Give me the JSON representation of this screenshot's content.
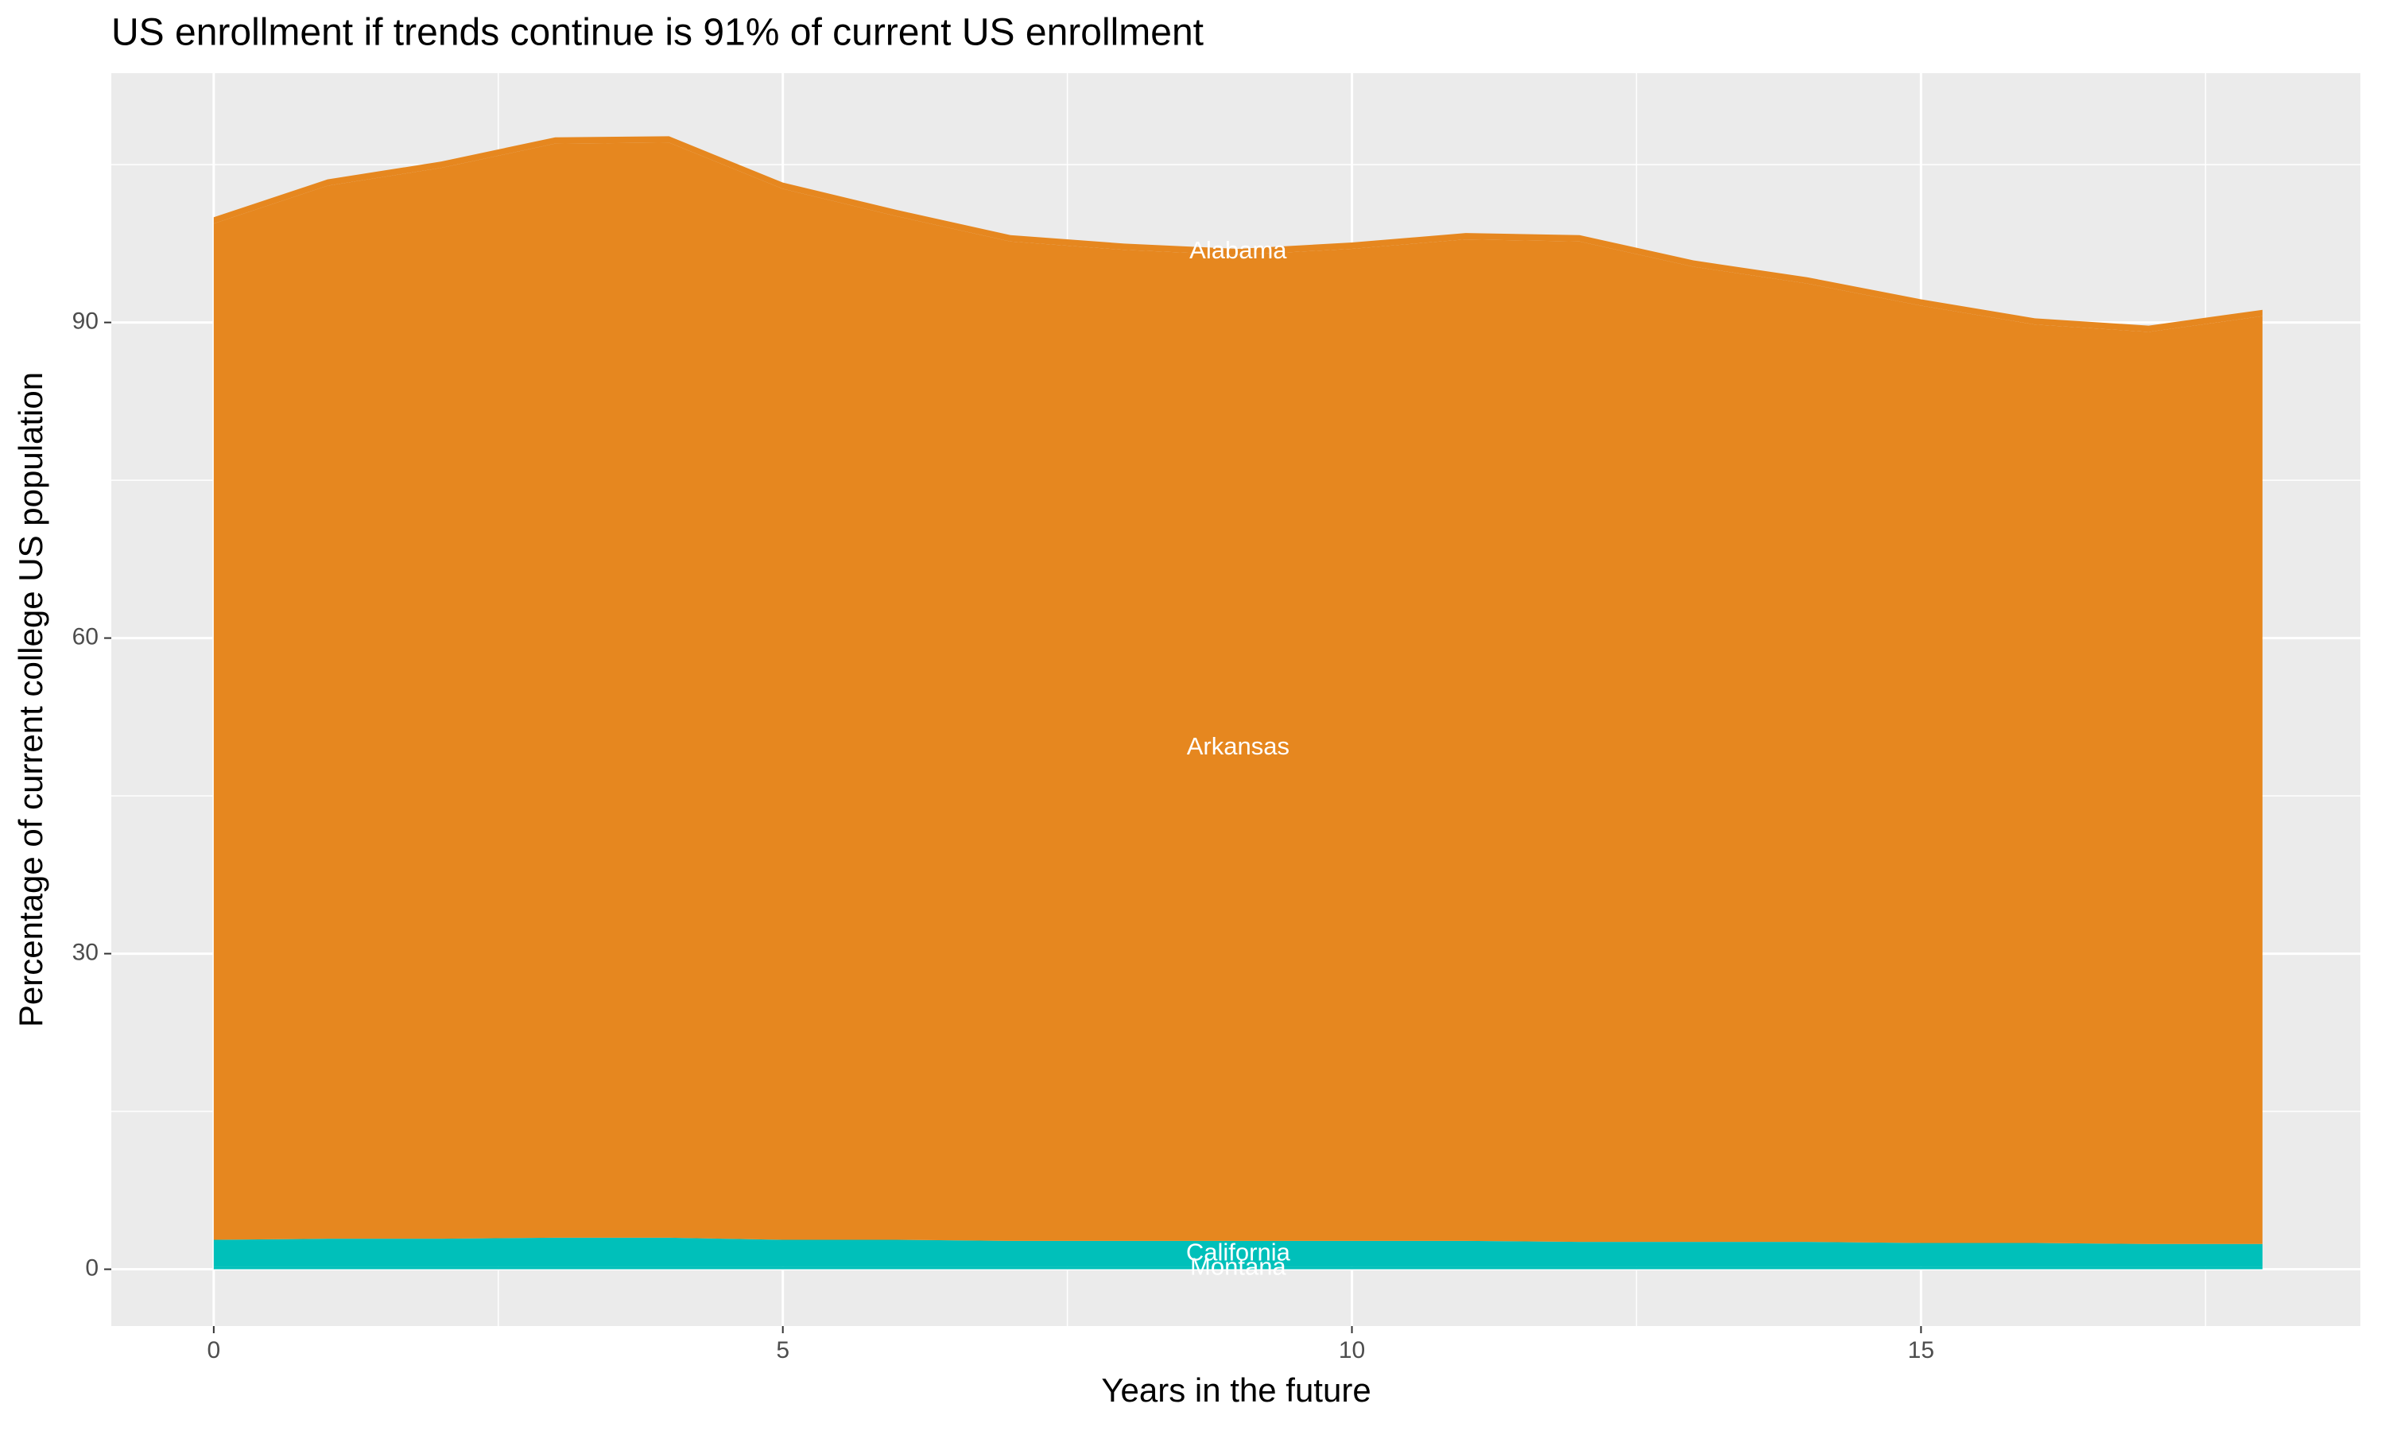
{
  "chart_data": {
    "type": "stacked_area",
    "title": "US enrollment if trends continue is 91% of current US enrollment",
    "x_label": "Years in the future",
    "y_label": "Percentage of current college US population",
    "x": [
      0,
      1,
      2,
      3,
      4,
      5,
      6,
      7,
      8,
      9,
      10,
      11,
      12,
      13,
      14,
      15,
      16,
      17,
      18
    ],
    "series": [
      {
        "name": "Montana",
        "color": "#00C0BA",
        "values": [
          0.2,
          0.2,
          0.2,
          0.2,
          0.2,
          0.2,
          0.2,
          0.2,
          0.2,
          0.2,
          0.2,
          0.2,
          0.2,
          0.2,
          0.2,
          0.2,
          0.2,
          0.2,
          0.2
        ]
      },
      {
        "name": "California",
        "color": "#00C0BA",
        "values": [
          2.6,
          2.7,
          2.7,
          2.8,
          2.8,
          2.6,
          2.6,
          2.5,
          2.5,
          2.5,
          2.5,
          2.5,
          2.4,
          2.4,
          2.4,
          2.3,
          2.3,
          2.2,
          2.2
        ]
      },
      {
        "name": "Arkansas",
        "color": "#E6871F",
        "values": [
          96.6,
          100.1,
          101.8,
          104.0,
          104.1,
          99.9,
          97.3,
          95.0,
          94.2,
          93.7,
          94.3,
          95.2,
          95.1,
          92.7,
          91.1,
          89.1,
          87.3,
          86.7,
          88.2
        ]
      },
      {
        "name": "Alabama",
        "color": "#E6871F",
        "values": [
          0.6,
          0.6,
          0.6,
          0.6,
          0.6,
          0.6,
          0.6,
          0.6,
          0.6,
          0.6,
          0.6,
          0.6,
          0.6,
          0.6,
          0.6,
          0.6,
          0.6,
          0.6,
          0.6
        ]
      }
    ],
    "label_x": 9,
    "xlim": [
      -0.9,
      18.86
    ],
    "xticks": [
      0,
      5,
      10,
      15
    ],
    "ylim": [
      -5.4,
      113.7
    ],
    "yticks": [
      0,
      30,
      60,
      90
    ],
    "grid": true
  }
}
